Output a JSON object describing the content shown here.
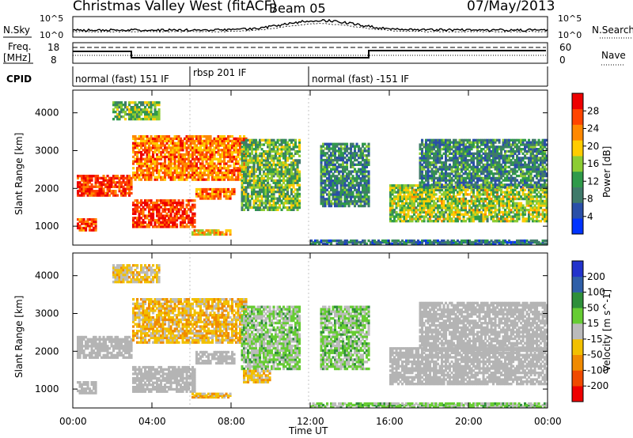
{
  "header": {
    "title": "Christmas Valley West (fitACF)",
    "beam": "Beam 05",
    "date": "07/May/2013"
  },
  "panels": {
    "nsky": {
      "label": "N.Sky",
      "ticks_top": "10^5",
      "ticks_bottom": "10^0"
    },
    "nsearch": {
      "label": "N.Search",
      "ticks_top": "10^5",
      "ticks_bottom": "10^0"
    },
    "freq": {
      "label_line1": "Freq.",
      "label_line2": "[MHz]",
      "ticks": [
        "18",
        "8"
      ]
    },
    "nave": {
      "label": "Nave",
      "ticks": [
        "60",
        "0"
      ]
    },
    "cpid": {
      "label": "CPID",
      "segments": [
        "normal (fast) 151 IF",
        "rbsp 201 IF",
        "normal (fast) -151 IF"
      ]
    }
  },
  "colors": {
    "power_scale": [
      "#0033ff",
      "#2a4fa8",
      "#3f7a6a",
      "#2f9a4a",
      "#8ccc33",
      "#ffcc00",
      "#ff8800",
      "#ff4400",
      "#ee0000"
    ],
    "velocity_scale": [
      "#2233cc",
      "#2f5fa8",
      "#2e8f3a",
      "#66cc33",
      "#bbbbbb",
      "#f2c000",
      "#f08a00",
      "#f04a00",
      "#ee0000"
    ],
    "ground_scatter": "#b4b4b4"
  },
  "chart_data": [
    {
      "type": "heatmap",
      "name": "power",
      "ylabel": "Slant Range [km]",
      "xlabel": "Time UT",
      "x_ticks": [
        "00:00",
        "04:00",
        "08:00",
        "12:00",
        "16:00",
        "20:00",
        "00:00"
      ],
      "y_ticks": [
        "1000",
        "2000",
        "3000",
        "4000"
      ],
      "ylim": [
        500,
        4600
      ],
      "xlim_hours": [
        0,
        24
      ],
      "colorbar": {
        "label": "Power [dB]",
        "ticks": [
          "28",
          "24",
          "20",
          "16",
          "12",
          "8",
          "4"
        ],
        "range": [
          0,
          32
        ]
      },
      "features": [
        {
          "t": [
            0.2,
            3.0
          ],
          "r0": 1780,
          "r1": 2350,
          "level": 28
        },
        {
          "t": [
            0.2,
            1.2
          ],
          "r0": 860,
          "r1": 1200,
          "level": 26
        },
        {
          "t": [
            3.0,
            6.2
          ],
          "r0": 950,
          "r1": 1700,
          "level": 28
        },
        {
          "t": [
            6.2,
            8.2
          ],
          "r0": 1700,
          "r1": 2000,
          "level": 24
        },
        {
          "t": [
            3.0,
            8.8
          ],
          "r0": 2200,
          "r1": 3400,
          "level": 24
        },
        {
          "t": [
            8.5,
            11.5
          ],
          "r0": 1400,
          "r1": 3300,
          "level": 14
        },
        {
          "t": [
            6.0,
            8.0
          ],
          "r0": 750,
          "r1": 900,
          "level": 20
        },
        {
          "t": [
            2.0,
            4.4
          ],
          "r0": 3800,
          "r1": 4300,
          "level": 14
        },
        {
          "t": [
            12.5,
            15.0
          ],
          "r0": 1500,
          "r1": 3200,
          "level": 10
        },
        {
          "t": [
            16.0,
            24.0
          ],
          "r0": 1100,
          "r1": 2100,
          "level": 16
        },
        {
          "t": [
            17.5,
            24.0
          ],
          "r0": 2000,
          "r1": 3300,
          "level": 10
        },
        {
          "t": [
            12.0,
            24.0
          ],
          "r0": 500,
          "r1": 620,
          "level": 8
        }
      ]
    },
    {
      "type": "heatmap",
      "name": "velocity",
      "ylabel": "Slant Range [km]",
      "xlabel": "Time UT",
      "x_ticks": [
        "00:00",
        "04:00",
        "08:00",
        "12:00",
        "16:00",
        "20:00",
        "00:00"
      ],
      "y_ticks": [
        "1000",
        "2000",
        "3000",
        "4000"
      ],
      "ylim": [
        500,
        4600
      ],
      "colorbar": {
        "label": "Velocity [m s^-1]",
        "ticks": [
          "200",
          "100",
          "50",
          "15",
          "-15",
          "-50",
          "-100",
          "-200"
        ],
        "range": [
          -250,
          250
        ]
      },
      "features": [
        {
          "t": [
            0.2,
            3.0
          ],
          "r0": 1800,
          "r1": 2400,
          "level": 0,
          "ground": true
        },
        {
          "t": [
            0.2,
            1.2
          ],
          "r0": 860,
          "r1": 1200,
          "level": 0,
          "ground": true
        },
        {
          "t": [
            3.0,
            6.2
          ],
          "r0": 900,
          "r1": 1600,
          "level": 0,
          "ground": true
        },
        {
          "t": [
            6.2,
            8.2
          ],
          "r0": 1650,
          "r1": 2000,
          "level": 0,
          "ground": true
        },
        {
          "t": [
            3.0,
            8.8
          ],
          "r0": 2200,
          "r1": 3400,
          "level": -60
        },
        {
          "t": [
            8.5,
            11.5
          ],
          "r0": 1500,
          "r1": 3200,
          "level": 40
        },
        {
          "t": [
            8.6,
            10.0
          ],
          "r0": 1150,
          "r1": 1500,
          "level": -60
        },
        {
          "t": [
            6.0,
            8.0
          ],
          "r0": 750,
          "r1": 880,
          "level": -60
        },
        {
          "t": [
            2.0,
            4.4
          ],
          "r0": 3800,
          "r1": 4300,
          "level": -40
        },
        {
          "t": [
            12.5,
            15.0
          ],
          "r0": 1500,
          "r1": 3200,
          "level": 40
        },
        {
          "t": [
            16.0,
            24.0
          ],
          "r0": 1100,
          "r1": 2100,
          "level": 0,
          "ground": true
        },
        {
          "t": [
            17.5,
            24.0
          ],
          "r0": 2000,
          "r1": 3300,
          "level": 0,
          "ground": true
        },
        {
          "t": [
            12.0,
            24.0
          ],
          "r0": 500,
          "r1": 620,
          "level": 40
        }
      ]
    }
  ]
}
